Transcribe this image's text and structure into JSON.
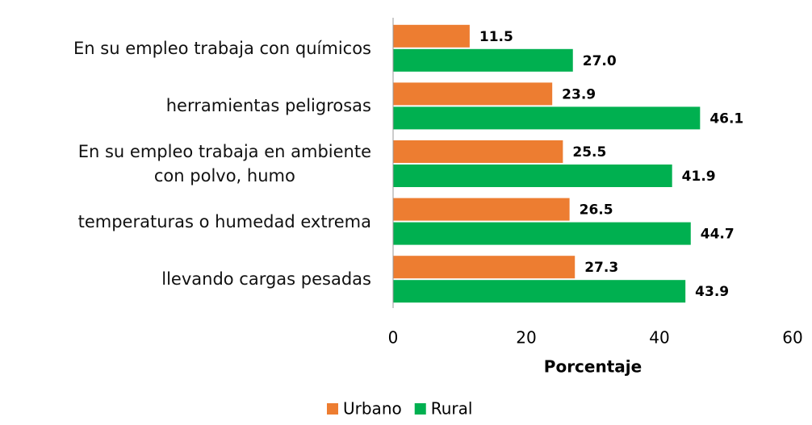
{
  "chart_data": {
    "type": "hbar",
    "categories": [
      "En su empleo trabaja con químicos",
      "herramientas peligrosas",
      "En su empleo trabaja en ambiente\ncon polvo, humo",
      "temperaturas o humedad extrema",
      "llevando cargas pesadas"
    ],
    "series": [
      {
        "name": "Urbano",
        "color": "#ed7d31",
        "values": [
          11.5,
          23.9,
          25.5,
          26.5,
          27.3
        ],
        "value_labels": [
          "11.5",
          "23.9",
          "25.5",
          "26.5",
          "27.3"
        ]
      },
      {
        "name": "Rural",
        "color": "#00b050",
        "values": [
          27.0,
          46.1,
          41.9,
          44.7,
          43.9
        ],
        "value_labels": [
          "27.0",
          "46.1",
          "41.9",
          "44.7",
          "43.9"
        ]
      }
    ],
    "xlim": [
      0,
      60
    ],
    "xticks": [
      0,
      20,
      40,
      60
    ],
    "xlabel": "Porcentaje"
  }
}
